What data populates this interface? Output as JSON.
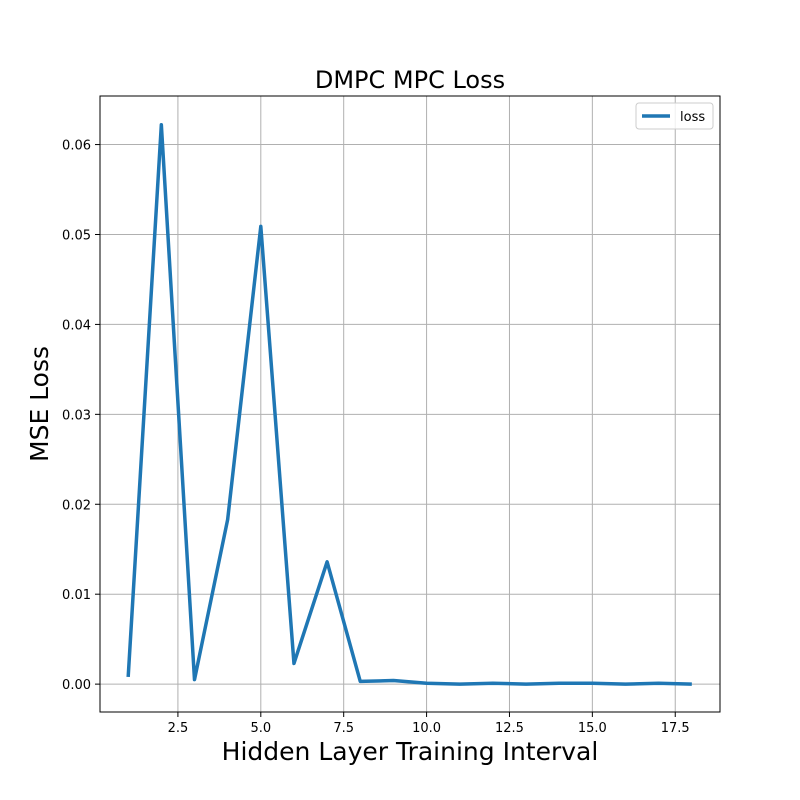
{
  "chart_data": {
    "type": "line",
    "title": "DMPC MPC Loss",
    "xlabel": "Hidden Layer Training Interval",
    "ylabel": "MSE Loss",
    "xlim": [
      0.15,
      18.85
    ],
    "ylim": [
      -0.0031,
      0.0654
    ],
    "xticks": [
      2.5,
      5.0,
      7.5,
      10.0,
      12.5,
      15.0,
      17.5
    ],
    "xtick_labels": [
      "2.5",
      "5.0",
      "7.5",
      "10.0",
      "12.5",
      "15.0",
      "17.5"
    ],
    "yticks": [
      0.0,
      0.01,
      0.02,
      0.03,
      0.04,
      0.05,
      0.06
    ],
    "ytick_labels": [
      "0.00",
      "0.01",
      "0.02",
      "0.03",
      "0.04",
      "0.05",
      "0.06"
    ],
    "grid": true,
    "legend_position": "top-right",
    "series": [
      {
        "name": "loss",
        "color": "#1f77b4",
        "x": [
          1,
          2,
          3,
          4,
          5,
          6,
          7,
          8,
          9,
          10,
          11,
          12,
          13,
          14,
          15,
          16,
          17,
          18
        ],
        "y": [
          0.0008,
          0.0622,
          0.0005,
          0.0183,
          0.0509,
          0.0023,
          0.0136,
          0.0003,
          0.0004,
          0.0001,
          0.0,
          0.0001,
          0.0,
          0.0001,
          0.0001,
          0.0,
          0.0001,
          0.0
        ]
      }
    ]
  }
}
